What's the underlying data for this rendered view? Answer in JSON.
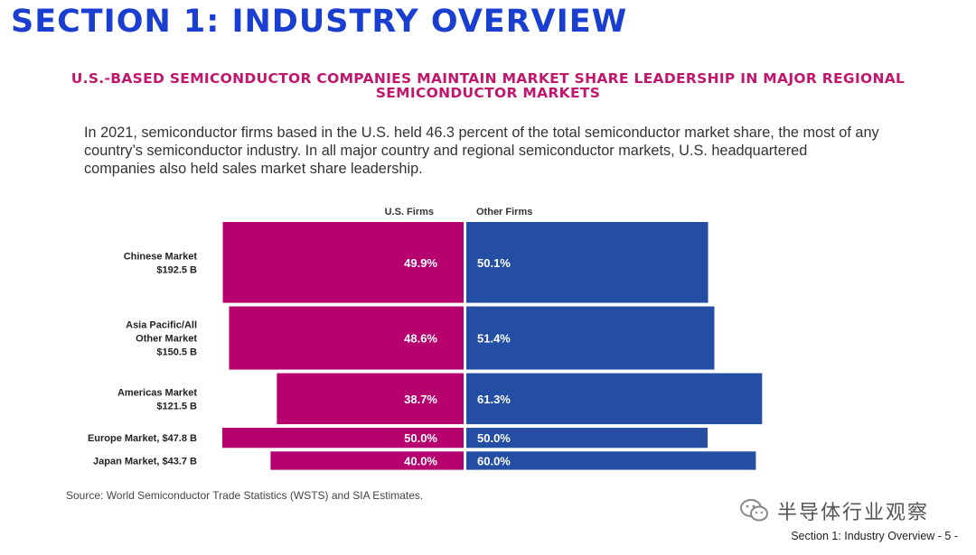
{
  "section_title": "SECTION 1: INDUSTRY OVERVIEW",
  "subtitle": "U.S.-BASED SEMICONDUCTOR COMPANIES MAINTAIN MARKET SHARE LEADERSHIP IN MAJOR REGIONAL SEMICONDUCTOR MARKETS",
  "body_text": "In 2021, semiconductor firms based in the U.S. held 46.3 percent of the total semiconductor market share, the most of any country’s semiconductor industry. In all major country and regional semiconductor markets, U.S. headquartered companies also held sales market share leadership.",
  "colors": {
    "us": "#b5006e",
    "other": "#234ea3",
    "title": "#1a3fd0",
    "subtitle": "#c0166e"
  },
  "chart_data": {
    "type": "bar",
    "layout": "diverging-marimekko",
    "series_headers": [
      "U.S. Firms",
      "Other Firms"
    ],
    "categories": [
      [
        "Chinese Market",
        "$192.5 B"
      ],
      [
        "Asia Pacific/All",
        "Other Market",
        "$150.5 B"
      ],
      [
        "Americas Market",
        "$121.5 B"
      ],
      [
        "Europe Market, $47.8 B"
      ],
      [
        "Japan Market, $43.7 B"
      ]
    ],
    "market_size_billion": [
      192.5,
      150.5,
      121.5,
      47.8,
      43.7
    ],
    "series": [
      {
        "name": "U.S. Firms",
        "values": [
          49.9,
          48.6,
          38.7,
          50.0,
          40.0
        ],
        "labels": [
          "49.9%",
          "48.6%",
          "38.7%",
          "50.0%",
          "40.0%"
        ]
      },
      {
        "name": "Other Firms",
        "values": [
          50.1,
          51.4,
          61.3,
          50.0,
          60.0
        ],
        "labels": [
          "50.1%",
          "51.4%",
          "61.3%",
          "50.0%",
          "60.0%"
        ]
      }
    ]
  },
  "source": "Source: World Semiconductor Trade Statistics (WSTS) and SIA Estimates.",
  "watermark": "半导体行业观察",
  "footer": "Section 1: Industry Overview - 5 -"
}
